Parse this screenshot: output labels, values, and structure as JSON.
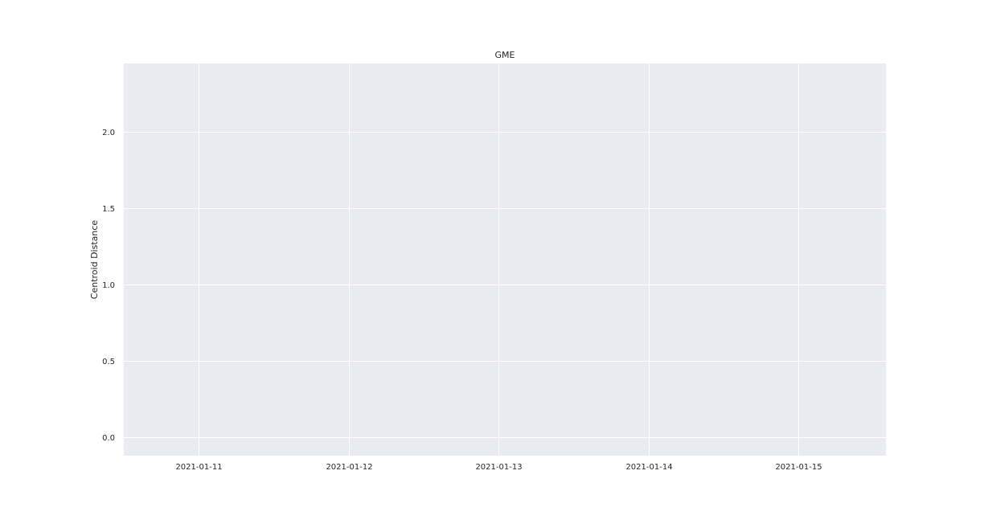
{
  "chart_data": {
    "type": "line",
    "title": "GME",
    "xlabel": "",
    "ylabel": "Centroid Distance",
    "x_ticks": [
      "2021-01-11",
      "2021-01-12",
      "2021-01-13",
      "2021-01-14",
      "2021-01-15"
    ],
    "x_range": [
      "2021-01-10T12:00",
      "2021-01-15T14:00"
    ],
    "y_ticks": [
      "0.0",
      "0.5",
      "1.0",
      "1.5",
      "2.0"
    ],
    "ylim": [
      -0.12,
      2.45
    ],
    "grid": true,
    "series": [],
    "colors": {
      "plot_background": "#eaeaf2",
      "grid": "#ffffff",
      "text": "#262626"
    }
  }
}
